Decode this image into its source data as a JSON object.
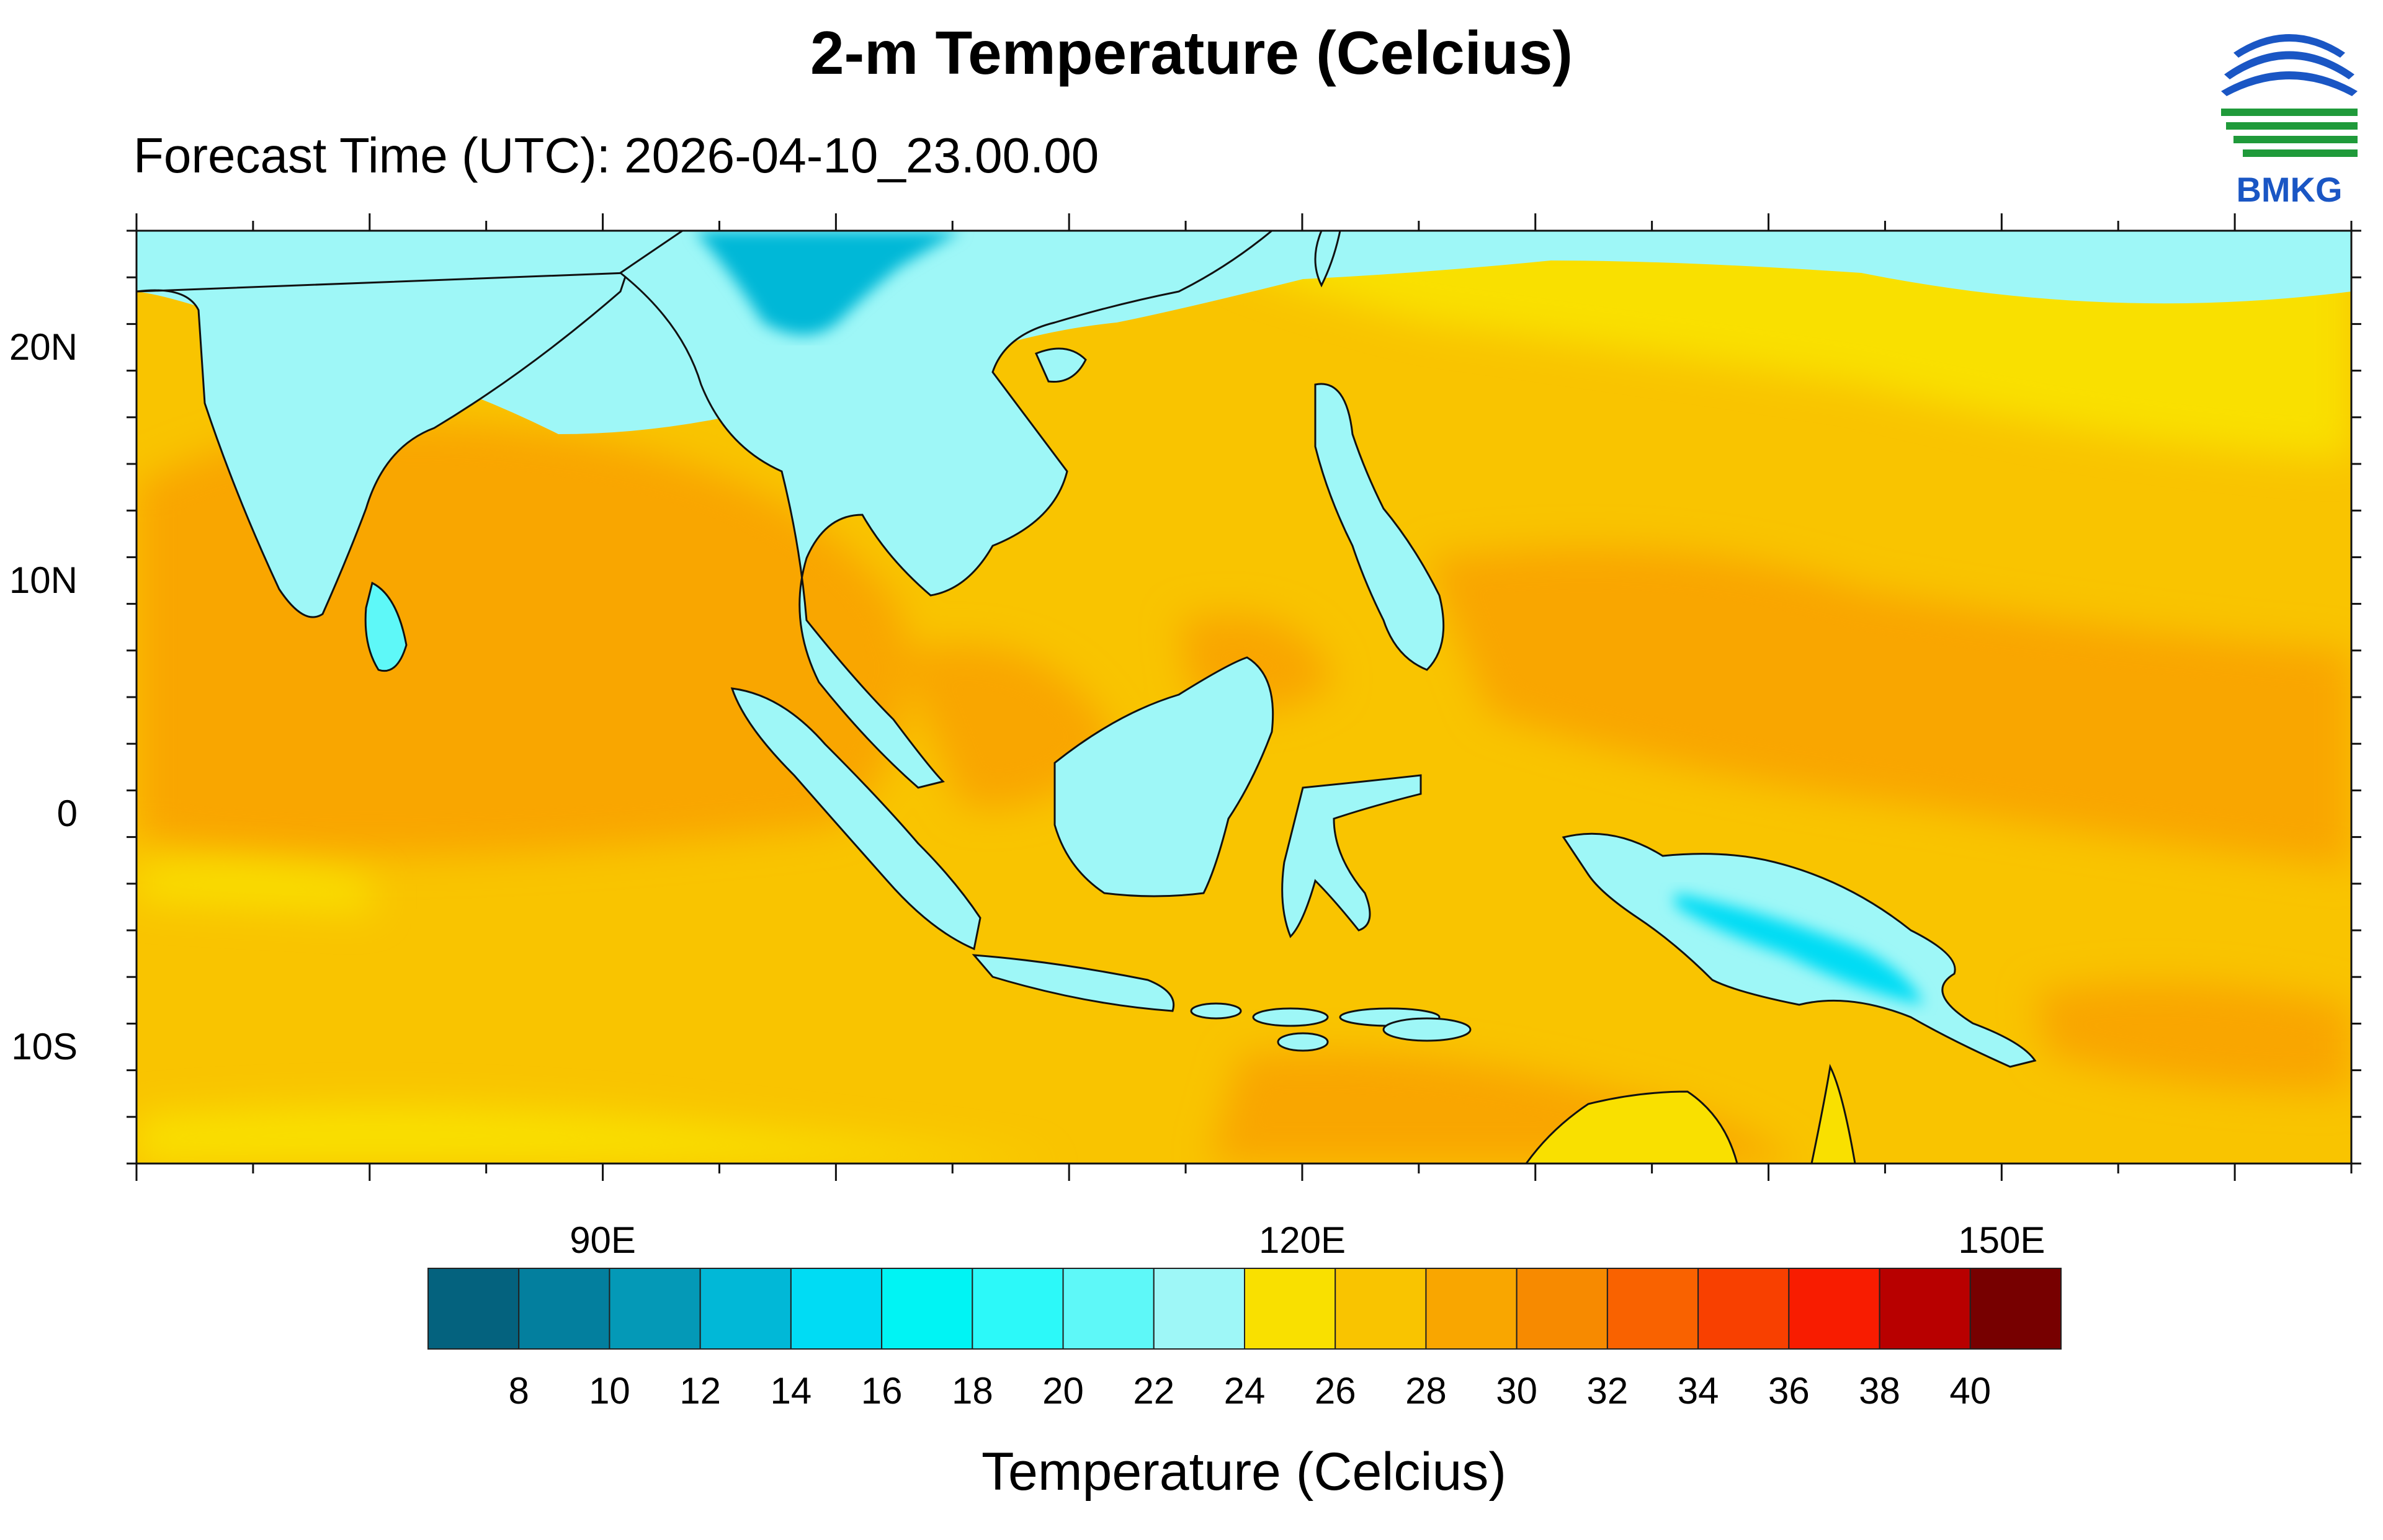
{
  "title": "2-m Temperature (Celcius)",
  "subtitle": "Forecast Time (UTC): 2026-04-10_23.00.00",
  "logo": {
    "text": "BMKG",
    "colors": {
      "blue": "#1a56c4",
      "green": "#1f9a3a"
    }
  },
  "map": {
    "lon_range": [
      70,
      165
    ],
    "lat_range": [
      -15,
      25
    ],
    "lat_labels": [
      "20N",
      "10N",
      "0",
      "10S"
    ],
    "lat_values": [
      20,
      10,
      0,
      -10
    ],
    "lon_labels": [
      "90E",
      "120E",
      "150E"
    ],
    "lon_values": [
      90,
      120,
      150
    ]
  },
  "colorbar": {
    "title": "Temperature (Celcius)",
    "labels": [
      "8",
      "10",
      "12",
      "14",
      "16",
      "18",
      "20",
      "22",
      "24",
      "26",
      "28",
      "30",
      "32",
      "34",
      "36",
      "38",
      "40"
    ],
    "colors": [
      "#04627e",
      "#037f9e",
      "#0499b7",
      "#01b8d7",
      "#00dcf4",
      "#00f4f4",
      "#2cf9f9",
      "#5ef8f8",
      "#9ef7f7",
      "#f9e000",
      "#f9c400",
      "#f9a600",
      "#f78a00",
      "#f96200",
      "#f84000",
      "#f81c00",
      "#b80000",
      "#770000"
    ]
  }
}
